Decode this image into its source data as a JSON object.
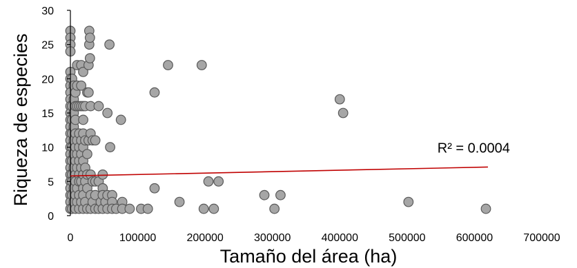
{
  "chart_data": {
    "type": "scatter",
    "title": "",
    "xlabel": "Tamaño del área (ha)",
    "ylabel": "Riqueza de especies",
    "xlim": [
      0,
      700000
    ],
    "ylim": [
      0,
      30
    ],
    "x_ticks": [
      "0",
      "100000",
      "200000",
      "300000",
      "400000",
      "500000",
      "600000",
      "700000"
    ],
    "y_ticks": [
      "0",
      "5",
      "10",
      "15",
      "20",
      "25",
      "30"
    ],
    "grid": false,
    "legend": "none",
    "point_color": "#a6a6a6",
    "point_edge_color": "#595959",
    "trendline": {
      "type": "linear",
      "color": "#c00000",
      "x": [
        0,
        620000
      ],
      "y": [
        5.8,
        7.1
      ],
      "label": "R² = 0.0004",
      "label_at": [
        545000,
        9.9
      ]
    },
    "points": [
      [
        0,
        27
      ],
      [
        0,
        26
      ],
      [
        0,
        25
      ],
      [
        0,
        24
      ],
      [
        0,
        21
      ],
      [
        0,
        20
      ],
      [
        0,
        19
      ],
      [
        0,
        18
      ],
      [
        0,
        17
      ],
      [
        0,
        16
      ],
      [
        0,
        15
      ],
      [
        0,
        14
      ],
      [
        0,
        13
      ],
      [
        0,
        12
      ],
      [
        0,
        11
      ],
      [
        0,
        10
      ],
      [
        0,
        9
      ],
      [
        0,
        8
      ],
      [
        0,
        7
      ],
      [
        0,
        6
      ],
      [
        0,
        5
      ],
      [
        0,
        4
      ],
      [
        0,
        3
      ],
      [
        0,
        2
      ],
      [
        0,
        1
      ],
      [
        2500,
        20
      ],
      [
        2500,
        16
      ],
      [
        2500,
        14
      ],
      [
        2500,
        12
      ],
      [
        2500,
        10
      ],
      [
        2500,
        8
      ],
      [
        2500,
        6
      ],
      [
        2500,
        5
      ],
      [
        2500,
        3
      ],
      [
        2500,
        1
      ],
      [
        5000,
        19
      ],
      [
        5000,
        17
      ],
      [
        5000,
        15
      ],
      [
        5000,
        13
      ],
      [
        5000,
        11
      ],
      [
        5000,
        9
      ],
      [
        5000,
        7
      ],
      [
        5000,
        4
      ],
      [
        5000,
        2
      ],
      [
        7500,
        18
      ],
      [
        7500,
        16
      ],
      [
        7500,
        14
      ],
      [
        7500,
        12
      ],
      [
        7500,
        10
      ],
      [
        7500,
        8
      ],
      [
        7500,
        6
      ],
      [
        7500,
        5
      ],
      [
        7500,
        3
      ],
      [
        7500,
        1
      ],
      [
        10000,
        22
      ],
      [
        10000,
        19
      ],
      [
        10000,
        16
      ],
      [
        10000,
        11
      ],
      [
        10000,
        9
      ],
      [
        10000,
        7
      ],
      [
        10000,
        4
      ],
      [
        10000,
        2
      ],
      [
        13000,
        16
      ],
      [
        13000,
        12
      ],
      [
        13000,
        10
      ],
      [
        13000,
        8
      ],
      [
        13000,
        6
      ],
      [
        13000,
        5
      ],
      [
        13000,
        3
      ],
      [
        13000,
        1
      ],
      [
        16000,
        22
      ],
      [
        16000,
        19
      ],
      [
        16000,
        16
      ],
      [
        16000,
        11
      ],
      [
        16000,
        9
      ],
      [
        16000,
        7
      ],
      [
        16000,
        5
      ],
      [
        16000,
        2
      ],
      [
        19000,
        21
      ],
      [
        19000,
        16
      ],
      [
        19000,
        14
      ],
      [
        19000,
        12
      ],
      [
        19000,
        10
      ],
      [
        19000,
        8
      ],
      [
        19000,
        6
      ],
      [
        19000,
        4
      ],
      [
        19000,
        3
      ],
      [
        19000,
        1
      ],
      [
        22000,
        16
      ],
      [
        22000,
        11
      ],
      [
        22000,
        7
      ],
      [
        22000,
        5
      ],
      [
        22000,
        2
      ],
      [
        25000,
        18
      ],
      [
        25000,
        9
      ],
      [
        25000,
        6
      ],
      [
        25000,
        4
      ],
      [
        25000,
        1
      ],
      [
        27000,
        22
      ],
      [
        27000,
        18
      ],
      [
        27000,
        11
      ],
      [
        28000,
        27
      ],
      [
        28000,
        25
      ],
      [
        29000,
        26
      ],
      [
        29000,
        23
      ],
      [
        30000,
        16
      ],
      [
        30000,
        12
      ],
      [
        30000,
        6
      ],
      [
        30000,
        3
      ],
      [
        30000,
        1
      ],
      [
        33000,
        11
      ],
      [
        33000,
        5
      ],
      [
        33000,
        2
      ],
      [
        37000,
        11
      ],
      [
        37000,
        5
      ],
      [
        37000,
        3
      ],
      [
        37000,
        1
      ],
      [
        42000,
        16
      ],
      [
        42000,
        5
      ],
      [
        42000,
        1
      ],
      [
        45000,
        2
      ],
      [
        48000,
        6
      ],
      [
        48000,
        4
      ],
      [
        48000,
        3
      ],
      [
        48000,
        1
      ],
      [
        52000,
        2
      ],
      [
        55000,
        15
      ],
      [
        55000,
        3
      ],
      [
        55000,
        1
      ],
      [
        58000,
        25
      ],
      [
        59000,
        10
      ],
      [
        62000,
        3
      ],
      [
        62000,
        2
      ],
      [
        62000,
        1
      ],
      [
        68000,
        1
      ],
      [
        75000,
        14
      ],
      [
        77000,
        2
      ],
      [
        77000,
        1
      ],
      [
        88000,
        1
      ],
      [
        105000,
        1
      ],
      [
        115000,
        1
      ],
      [
        125000,
        18
      ],
      [
        125000,
        4
      ],
      [
        145000,
        22
      ],
      [
        162000,
        2
      ],
      [
        195000,
        22
      ],
      [
        198000,
        1
      ],
      [
        205000,
        5
      ],
      [
        213000,
        1
      ],
      [
        220000,
        5
      ],
      [
        288000,
        3
      ],
      [
        303000,
        1
      ],
      [
        312000,
        3
      ],
      [
        400000,
        17
      ],
      [
        405000,
        15
      ],
      [
        502000,
        2
      ],
      [
        617000,
        1
      ]
    ]
  }
}
